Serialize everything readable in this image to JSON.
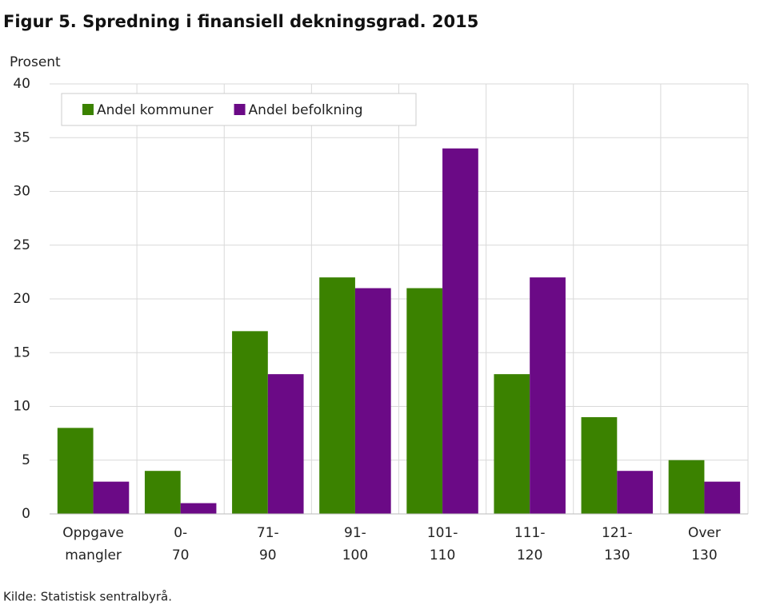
{
  "chart_data": {
    "type": "bar",
    "title": "Figur 5. Spredning i finansiell dekningsgrad. 2015",
    "y_label": "Prosent",
    "source": "Kilde: Statistisk sentralbyrå.",
    "categories": [
      [
        "Oppgave",
        "mangler"
      ],
      [
        "0-",
        "70"
      ],
      [
        "71-",
        "90"
      ],
      [
        "91-",
        "100"
      ],
      [
        "101-",
        "110"
      ],
      [
        "111-",
        "120"
      ],
      [
        "121-",
        "130"
      ],
      [
        "Over",
        "130"
      ]
    ],
    "series": [
      {
        "name": "Andel kommuner",
        "color": "#3b8200",
        "values": [
          8,
          4,
          17,
          22,
          21,
          13,
          9,
          5
        ]
      },
      {
        "name": "Andel befolkning",
        "color": "#6b0a86",
        "values": [
          3,
          1,
          13,
          21,
          34,
          22,
          4,
          3
        ]
      }
    ],
    "ylim": [
      0,
      40
    ],
    "yticks": [
      0,
      5,
      10,
      15,
      20,
      25,
      30,
      35,
      40
    ],
    "grid": true,
    "legend": "top-left"
  }
}
